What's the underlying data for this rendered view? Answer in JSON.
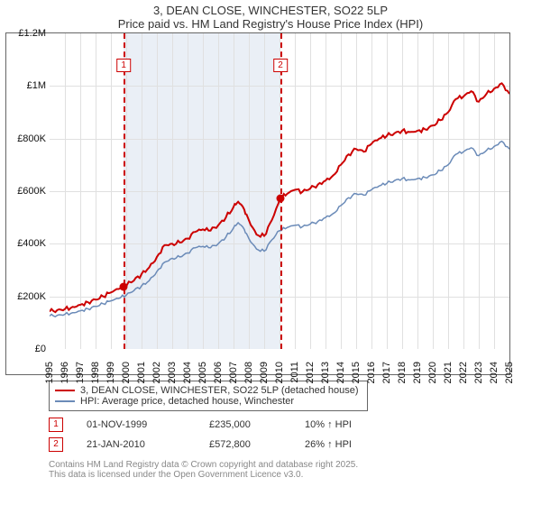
{
  "title": "3, DEAN CLOSE, WINCHESTER, SO22 5LP",
  "subtitle": "Price paid vs. HM Land Registry's House Price Index (HPI)",
  "chart": {
    "type": "line",
    "background_color": "#ffffff",
    "grid_color": "#e0e0e0",
    "shade_color": "#e8edf5",
    "y_axis": {
      "min": 0,
      "max": 1200000,
      "ticks": [
        0,
        200000,
        400000,
        600000,
        800000,
        1000000,
        1200000
      ],
      "tick_labels": [
        "£0",
        "£200K",
        "£400K",
        "£600K",
        "£800K",
        "£1M",
        "£1.2M"
      ]
    },
    "x_axis": {
      "min": 1995,
      "max": 2025,
      "tick_labels": [
        "1995",
        "1996",
        "1997",
        "1998",
        "1999",
        "2000",
        "2001",
        "2002",
        "2003",
        "2004",
        "2005",
        "2006",
        "2007",
        "2008",
        "2009",
        "2010",
        "2011",
        "2012",
        "2013",
        "2014",
        "2015",
        "2016",
        "2017",
        "2018",
        "2019",
        "2020",
        "2021",
        "2022",
        "2023",
        "2024",
        "2025"
      ]
    },
    "shaded_region": {
      "x_start": 1999.83,
      "x_end": 2010.06
    },
    "marker_lines": [
      {
        "x": 1999.83,
        "label": "1"
      },
      {
        "x": 2010.06,
        "label": "2"
      }
    ],
    "series": [
      {
        "name": "price_paid",
        "label": "3, DEAN CLOSE, WINCHESTER, SO22 5LP (detached house)",
        "color": "#cc0000",
        "line_width": 2,
        "data": [
          [
            1995,
            142000
          ],
          [
            1995.5,
            148000
          ],
          [
            1996,
            152000
          ],
          [
            1996.5,
            160000
          ],
          [
            1997,
            168000
          ],
          [
            1997.5,
            178000
          ],
          [
            1998,
            188000
          ],
          [
            1998.5,
            200000
          ],
          [
            1999,
            215000
          ],
          [
            1999.5,
            228000
          ],
          [
            1999.83,
            235000
          ],
          [
            2000.5,
            260000
          ],
          [
            2001,
            285000
          ],
          [
            2001.5,
            310000
          ],
          [
            2002,
            350000
          ],
          [
            2002.5,
            395000
          ],
          [
            2003,
            400000
          ],
          [
            2003.5,
            405000
          ],
          [
            2004,
            420000
          ],
          [
            2004.5,
            445000
          ],
          [
            2005,
            455000
          ],
          [
            2005.5,
            450000
          ],
          [
            2006,
            470000
          ],
          [
            2006.5,
            500000
          ],
          [
            2007,
            540000
          ],
          [
            2007.3,
            560000
          ],
          [
            2007.7,
            530000
          ],
          [
            2008,
            490000
          ],
          [
            2008.5,
            435000
          ],
          [
            2009,
            430000
          ],
          [
            2009.5,
            490000
          ],
          [
            2010.06,
            572800
          ],
          [
            2010.5,
            590000
          ],
          [
            2011,
            605000
          ],
          [
            2011.5,
            598000
          ],
          [
            2012,
            610000
          ],
          [
            2012.5,
            625000
          ],
          [
            2013,
            640000
          ],
          [
            2013.5,
            660000
          ],
          [
            2014,
            700000
          ],
          [
            2014.5,
            740000
          ],
          [
            2015,
            760000
          ],
          [
            2015.5,
            750000
          ],
          [
            2016,
            780000
          ],
          [
            2016.5,
            800000
          ],
          [
            2017,
            810000
          ],
          [
            2017.5,
            820000
          ],
          [
            2018,
            830000
          ],
          [
            2018.5,
            825000
          ],
          [
            2019,
            830000
          ],
          [
            2019.5,
            835000
          ],
          [
            2020,
            850000
          ],
          [
            2020.5,
            870000
          ],
          [
            2021,
            900000
          ],
          [
            2021.5,
            950000
          ],
          [
            2022,
            960000
          ],
          [
            2022.5,
            980000
          ],
          [
            2023,
            940000
          ],
          [
            2023.5,
            970000
          ],
          [
            2024,
            990000
          ],
          [
            2024.5,
            1010000
          ],
          [
            2025,
            970000
          ]
        ]
      },
      {
        "name": "hpi",
        "label": "HPI: Average price, detached house, Winchester",
        "color": "#6b8bb8",
        "line_width": 1.5,
        "data": [
          [
            1995,
            125000
          ],
          [
            1995.5,
            128000
          ],
          [
            1996,
            132000
          ],
          [
            1996.5,
            138000
          ],
          [
            1997,
            145000
          ],
          [
            1997.5,
            153000
          ],
          [
            1998,
            162000
          ],
          [
            1998.5,
            172000
          ],
          [
            1999,
            183000
          ],
          [
            1999.5,
            192000
          ],
          [
            2000,
            205000
          ],
          [
            2000.5,
            222000
          ],
          [
            2001,
            240000
          ],
          [
            2001.5,
            260000
          ],
          [
            2002,
            295000
          ],
          [
            2002.5,
            330000
          ],
          [
            2003,
            345000
          ],
          [
            2003.5,
            350000
          ],
          [
            2004,
            365000
          ],
          [
            2004.5,
            385000
          ],
          [
            2005,
            390000
          ],
          [
            2005.5,
            385000
          ],
          [
            2006,
            400000
          ],
          [
            2006.5,
            425000
          ],
          [
            2007,
            460000
          ],
          [
            2007.3,
            480000
          ],
          [
            2007.7,
            455000
          ],
          [
            2008,
            420000
          ],
          [
            2008.5,
            380000
          ],
          [
            2009,
            372000
          ],
          [
            2009.5,
            415000
          ],
          [
            2010,
            450000
          ],
          [
            2010.5,
            462000
          ],
          [
            2011,
            470000
          ],
          [
            2011.5,
            465000
          ],
          [
            2012,
            475000
          ],
          [
            2012.5,
            485000
          ],
          [
            2013,
            500000
          ],
          [
            2013.5,
            515000
          ],
          [
            2014,
            545000
          ],
          [
            2014.5,
            575000
          ],
          [
            2015,
            590000
          ],
          [
            2015.5,
            585000
          ],
          [
            2016,
            605000
          ],
          [
            2016.5,
            620000
          ],
          [
            2017,
            630000
          ],
          [
            2017.5,
            640000
          ],
          [
            2018,
            648000
          ],
          [
            2018.5,
            643000
          ],
          [
            2019,
            648000
          ],
          [
            2019.5,
            652000
          ],
          [
            2020,
            662000
          ],
          [
            2020.5,
            678000
          ],
          [
            2021,
            700000
          ],
          [
            2021.5,
            740000
          ],
          [
            2022,
            750000
          ],
          [
            2022.5,
            765000
          ],
          [
            2023,
            735000
          ],
          [
            2023.5,
            755000
          ],
          [
            2024,
            770000
          ],
          [
            2024.5,
            790000
          ],
          [
            2025,
            760000
          ]
        ]
      }
    ],
    "sale_markers": [
      {
        "x": 1999.83,
        "y": 235000
      },
      {
        "x": 2010.06,
        "y": 572800
      }
    ]
  },
  "legend": [
    {
      "color": "#cc0000",
      "label": "3, DEAN CLOSE, WINCHESTER, SO22 5LP (detached house)"
    },
    {
      "color": "#6b8bb8",
      "label": "HPI: Average price, detached house, Winchester"
    }
  ],
  "sales": [
    {
      "n": "1",
      "date": "01-NOV-1999",
      "price": "£235,000",
      "delta": "10% ↑ HPI"
    },
    {
      "n": "2",
      "date": "21-JAN-2010",
      "price": "£572,800",
      "delta": "26% ↑ HPI"
    }
  ],
  "footnote1": "Contains HM Land Registry data © Crown copyright and database right 2025.",
  "footnote2": "This data is licensed under the Open Government Licence v3.0."
}
